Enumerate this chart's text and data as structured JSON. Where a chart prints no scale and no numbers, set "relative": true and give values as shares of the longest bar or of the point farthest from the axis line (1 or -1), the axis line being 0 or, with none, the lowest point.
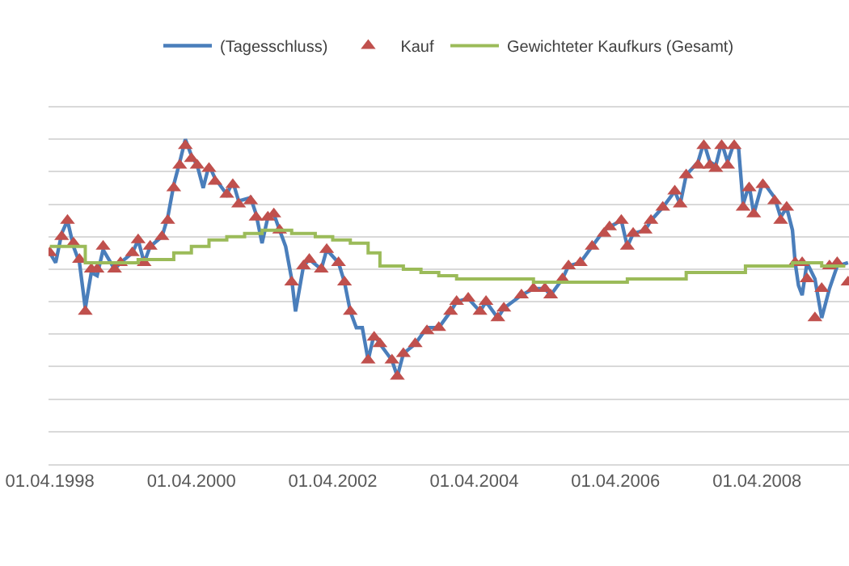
{
  "chart_data": {
    "type": "line",
    "relative": true,
    "grid": "y",
    "legend": "top",
    "tick_labels": "x",
    "xlim": [
      "1998-03-25",
      "2009-07-20"
    ],
    "xticks": [
      {
        "value": "1998-04-01",
        "label": "01.04.1998"
      },
      {
        "value": "2000-04-01",
        "label": "01.04.2000"
      },
      {
        "value": "2002-04-01",
        "label": "01.04.2002"
      },
      {
        "value": "2004-04-01",
        "label": "01.04.2004"
      },
      {
        "value": "2006-04-01",
        "label": "01.04.2006"
      },
      {
        "value": "2008-04-01",
        "label": "01.04.2008"
      }
    ],
    "series": [
      {
        "name": "(Tagesschluss)",
        "color": "#4a7ebb",
        "marker": "none",
        "x": [
          "1998-04",
          "1998-05",
          "1998-06",
          "1998-07",
          "1998-08",
          "1998-09",
          "1998-10",
          "1998-11",
          "1998-12",
          "1999-01",
          "1999-03",
          "1999-04",
          "1999-06",
          "1999-07",
          "1999-08",
          "1999-09",
          "1999-11",
          "1999-12",
          "2000-01",
          "2000-02",
          "2000-03",
          "2000-04",
          "2000-05",
          "2000-06",
          "2000-07",
          "2000-08",
          "2000-10",
          "2000-11",
          "2000-12",
          "2001-02",
          "2001-03",
          "2001-04",
          "2001-05",
          "2001-06",
          "2001-07",
          "2001-08",
          "2001-09-01",
          "2001-09-21",
          "2001-11",
          "2001-12",
          "2002-02",
          "2002-03",
          "2002-05",
          "2002-06",
          "2002-07",
          "2002-08",
          "2002-09",
          "2002-10",
          "2002-11",
          "2002-12",
          "2003-02",
          "2003-03",
          "2003-04",
          "2003-06",
          "2003-08",
          "2003-10",
          "2003-12",
          "2004-01",
          "2004-03",
          "2004-05",
          "2004-06",
          "2004-08",
          "2004-09",
          "2004-12",
          "2005-02",
          "2005-04",
          "2005-05",
          "2005-07",
          "2005-08",
          "2005-10",
          "2005-12",
          "2006-02",
          "2006-03",
          "2006-05",
          "2006-06",
          "2006-07",
          "2006-09",
          "2006-10",
          "2006-12",
          "2007-02",
          "2007-03",
          "2007-04",
          "2007-06",
          "2007-07",
          "2007-08",
          "2007-09",
          "2007-10",
          "2007-11",
          "2007-12-05",
          "2007-12-28",
          "2008-01-20",
          "2008-02-20",
          "2008-03-15",
          "2008-05",
          "2008-07",
          "2008-08",
          "2008-09",
          "2008-10-01",
          "2008-10-15",
          "2008-11-01",
          "2008-11-20",
          "2008-12-15",
          "2009-01-25",
          "2009-03-01",
          "2009-04-10",
          "2009-05-20",
          "2009-07-15"
        ],
        "values": [
          0.65,
          0.62,
          0.71,
          0.75,
          0.67,
          0.62,
          0.48,
          0.59,
          0.58,
          0.66,
          0.6,
          0.62,
          0.65,
          0.69,
          0.62,
          0.67,
          0.7,
          0.76,
          0.86,
          0.93,
          1.0,
          0.95,
          0.92,
          0.85,
          0.92,
          0.88,
          0.83,
          0.87,
          0.81,
          0.82,
          0.77,
          0.68,
          0.76,
          0.77,
          0.72,
          0.67,
          0.57,
          0.47,
          0.61,
          0.63,
          0.6,
          0.66,
          0.62,
          0.56,
          0.47,
          0.42,
          0.42,
          0.32,
          0.4,
          0.37,
          0.32,
          0.27,
          0.34,
          0.37,
          0.42,
          0.42,
          0.47,
          0.5,
          0.51,
          0.47,
          0.5,
          0.45,
          0.48,
          0.52,
          0.54,
          0.54,
          0.52,
          0.57,
          0.61,
          0.62,
          0.67,
          0.72,
          0.73,
          0.75,
          0.67,
          0.71,
          0.72,
          0.75,
          0.79,
          0.84,
          0.8,
          0.89,
          0.93,
          0.99,
          0.93,
          0.92,
          0.99,
          0.93,
          0.99,
          0.97,
          0.8,
          0.86,
          0.77,
          0.87,
          0.82,
          0.76,
          0.79,
          0.72,
          0.62,
          0.55,
          0.52,
          0.62,
          0.57,
          0.45,
          0.54,
          0.61,
          0.62
        ]
      },
      {
        "name": "Kauf",
        "type": "scatter",
        "color": "#c0504d",
        "marker": "triangle",
        "x": [
          "1998-04",
          "1998-06",
          "1998-07",
          "1998-08",
          "1998-09",
          "1998-10",
          "1998-11",
          "1998-12",
          "1999-01",
          "1999-03",
          "1999-04",
          "1999-06",
          "1999-07",
          "1999-08",
          "1999-09",
          "1999-11",
          "1999-12",
          "2000-01",
          "2000-02",
          "2000-03",
          "2000-04",
          "2000-05",
          "2000-07",
          "2000-08",
          "2000-10",
          "2000-11",
          "2000-12",
          "2001-02",
          "2001-03",
          "2001-05",
          "2001-06",
          "2001-07",
          "2001-09-01",
          "2001-11",
          "2001-12",
          "2002-02",
          "2002-03",
          "2002-05",
          "2002-06",
          "2002-07",
          "2002-10",
          "2002-11",
          "2002-12",
          "2003-02",
          "2003-03",
          "2003-04",
          "2003-06",
          "2003-08",
          "2003-10",
          "2003-12",
          "2004-01",
          "2004-03",
          "2004-05",
          "2004-06",
          "2004-08",
          "2004-09",
          "2004-12",
          "2005-02",
          "2005-04",
          "2005-05",
          "2005-07",
          "2005-08",
          "2005-10",
          "2005-12",
          "2006-02",
          "2006-03",
          "2006-05",
          "2006-06",
          "2006-07",
          "2006-09",
          "2006-10",
          "2006-12",
          "2007-02",
          "2007-03",
          "2007-04",
          "2007-06",
          "2007-07",
          "2007-08",
          "2007-09",
          "2007-10",
          "2007-11",
          "2007-12-05",
          "2008-01-20",
          "2008-02-20",
          "2008-03-15",
          "2008-05",
          "2008-07",
          "2008-08",
          "2008-09",
          "2008-10-15",
          "2008-11-20",
          "2008-12-15",
          "2009-01-25",
          "2009-03-01",
          "2009-04-10",
          "2009-05-20",
          "2009-07-15"
        ],
        "values": [
          0.65,
          0.7,
          0.75,
          0.68,
          0.63,
          0.47,
          0.6,
          0.6,
          0.67,
          0.6,
          0.62,
          0.65,
          0.69,
          0.62,
          0.67,
          0.7,
          0.75,
          0.85,
          0.92,
          0.98,
          0.94,
          0.92,
          0.91,
          0.87,
          0.83,
          0.86,
          0.8,
          0.81,
          0.76,
          0.76,
          0.77,
          0.72,
          0.56,
          0.61,
          0.63,
          0.6,
          0.66,
          0.62,
          0.56,
          0.47,
          0.32,
          0.39,
          0.37,
          0.32,
          0.27,
          0.34,
          0.37,
          0.41,
          0.42,
          0.47,
          0.5,
          0.51,
          0.47,
          0.5,
          0.45,
          0.48,
          0.52,
          0.54,
          0.54,
          0.52,
          0.57,
          0.61,
          0.62,
          0.67,
          0.71,
          0.73,
          0.75,
          0.67,
          0.71,
          0.72,
          0.75,
          0.79,
          0.84,
          0.8,
          0.89,
          0.92,
          0.98,
          0.92,
          0.91,
          0.98,
          0.92,
          0.98,
          0.79,
          0.85,
          0.77,
          0.86,
          0.81,
          0.75,
          0.79,
          0.62,
          0.62,
          0.57,
          0.45,
          0.54,
          0.61,
          0.62,
          0.56
        ]
      },
      {
        "name": "Gewichteter Kaufkurs (Gesamt)",
        "type": "step",
        "color": "#9bbb59",
        "marker": "none",
        "x": [
          "1998-04",
          "1998-10",
          "1999-07",
          "2000-01",
          "2000-04",
          "2000-07",
          "2000-10",
          "2001-01",
          "2001-04",
          "2001-07",
          "2001-09",
          "2002-01",
          "2002-04",
          "2002-07",
          "2002-10",
          "2002-12",
          "2003-04",
          "2003-07",
          "2003-10",
          "2004-01",
          "2004-06",
          "2005-02",
          "2006-01",
          "2006-06",
          "2007-04",
          "2008-02",
          "2008-10",
          "2009-03",
          "2009-07"
        ],
        "values": [
          0.67,
          0.62,
          0.63,
          0.65,
          0.67,
          0.69,
          0.7,
          0.71,
          0.72,
          0.72,
          0.71,
          0.7,
          0.69,
          0.68,
          0.65,
          0.61,
          0.6,
          0.59,
          0.58,
          0.57,
          0.57,
          0.56,
          0.56,
          0.57,
          0.59,
          0.61,
          0.62,
          0.61,
          0.61
        ]
      }
    ]
  }
}
